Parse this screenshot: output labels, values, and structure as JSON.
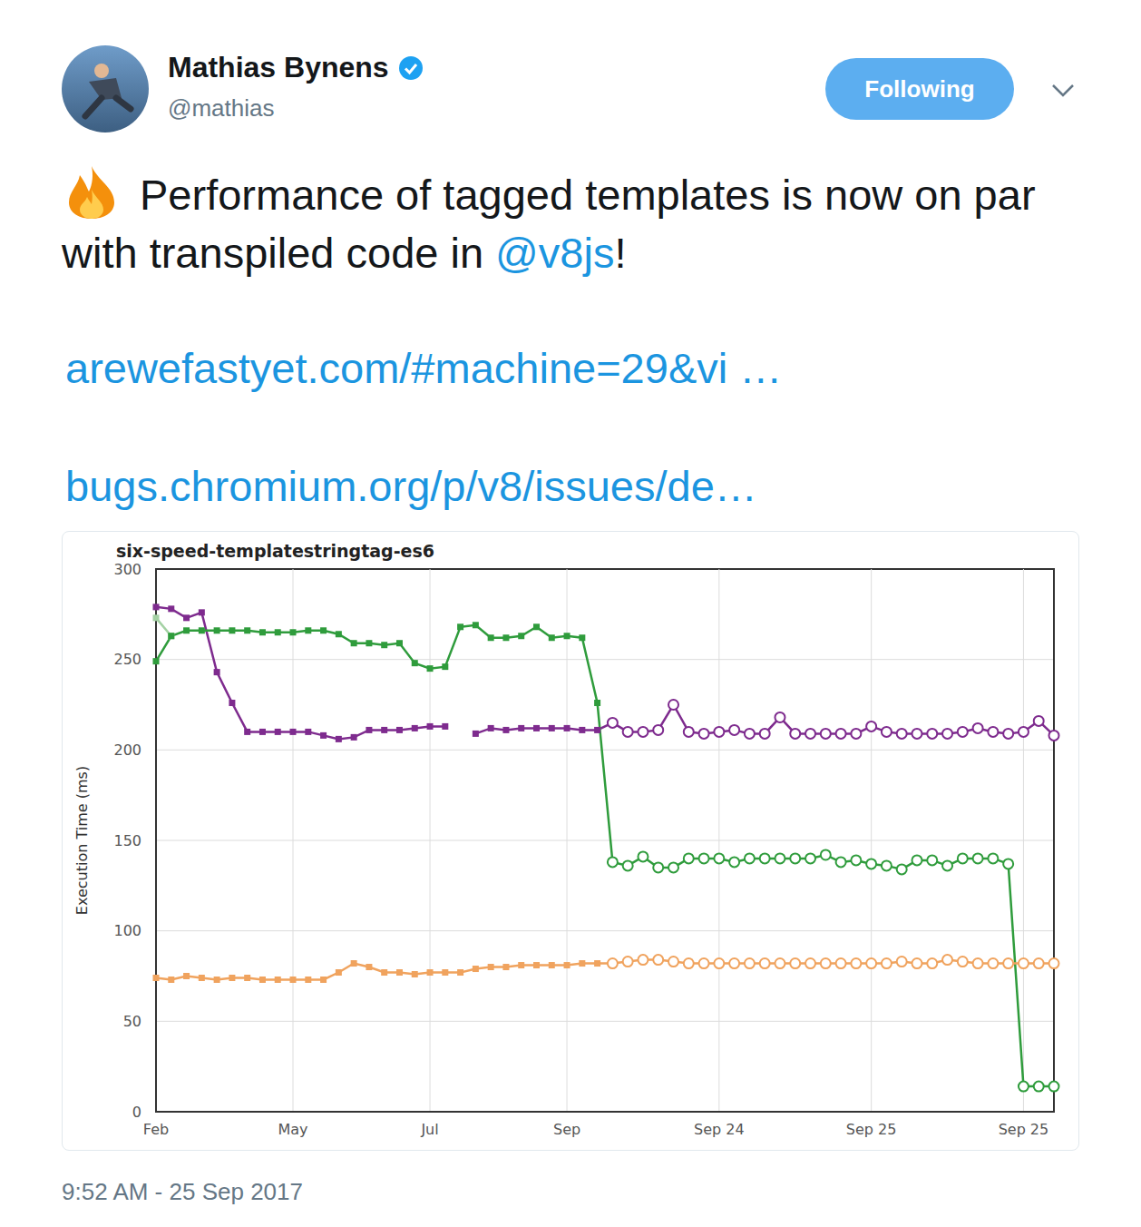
{
  "tweet": {
    "author": {
      "name": "Mathias Bynens",
      "handle": "@mathias",
      "verified": true
    },
    "button": "Following",
    "text": "Performance of tagged templates is now on par with transpiled code in ",
    "mention": "@v8js",
    "text_end": "!",
    "links": [
      "arewefastyet.com/#machine=29&vi …",
      "bugs.chromium.org/p/v8/issues/de…"
    ],
    "timestamp": "9:52 AM - 25 Sep 2017"
  },
  "chart_data": {
    "type": "line",
    "title": "six-speed-templatestringtag-es6",
    "y_label": "Execution Time (ms)",
    "categories": [
      "Feb",
      null,
      null,
      null,
      null,
      null,
      null,
      null,
      null,
      "May",
      null,
      null,
      null,
      null,
      null,
      null,
      null,
      null,
      "Jul",
      null,
      null,
      null,
      null,
      null,
      null,
      null,
      null,
      "Sep",
      null,
      null,
      null,
      null,
      null,
      null,
      null,
      null,
      null,
      "Sep 24",
      null,
      null,
      null,
      null,
      null,
      null,
      null,
      null,
      null,
      "Sep 25",
      null,
      null,
      null,
      null,
      null,
      null,
      null,
      null,
      null,
      "Sep 25",
      null,
      null
    ],
    "ylim": [
      0,
      300
    ],
    "yticks": [
      0,
      50,
      100,
      150,
      200,
      250,
      300
    ],
    "grid": true,
    "series": [
      {
        "color": "#a3d1a3",
        "marker": "square",
        "values": [
          273,
          263,
          null,
          null,
          null,
          null,
          null,
          null,
          null,
          null,
          null,
          null,
          null,
          null,
          null,
          null,
          null,
          null,
          null,
          null,
          null,
          null,
          null,
          null,
          null,
          null,
          null,
          null,
          null,
          null,
          null,
          null,
          null,
          null,
          null,
          null,
          null,
          null,
          null,
          null,
          null,
          null,
          null,
          null,
          null,
          null,
          null,
          null,
          null,
          null,
          null,
          null,
          null,
          null,
          null,
          null,
          null,
          null,
          null,
          null
        ]
      },
      {
        "color": "#7e2b8e",
        "marker": "square",
        "values": [
          279,
          278,
          273,
          276,
          243,
          226,
          210,
          210,
          210,
          210,
          210,
          208,
          206,
          207,
          211,
          211,
          211,
          212,
          213,
          213,
          null,
          209,
          212,
          211,
          212,
          212,
          212,
          212,
          211,
          211,
          215,
          null,
          null,
          null,
          null,
          null,
          null,
          null,
          null,
          null,
          null,
          null,
          null,
          null,
          null,
          null,
          null,
          null,
          null,
          null,
          null,
          null,
          null,
          null,
          null,
          null,
          null,
          null,
          null,
          null
        ]
      },
      {
        "color": "#7e2b8e",
        "marker": "circle",
        "values": [
          null,
          null,
          null,
          null,
          null,
          null,
          null,
          null,
          null,
          null,
          null,
          null,
          null,
          null,
          null,
          null,
          null,
          null,
          null,
          null,
          null,
          null,
          null,
          null,
          null,
          null,
          null,
          null,
          null,
          null,
          215,
          210,
          210,
          211,
          225,
          210,
          209,
          210,
          211,
          209,
          209,
          218,
          209,
          209,
          209,
          209,
          209,
          213,
          210,
          209,
          209,
          209,
          209,
          210,
          212,
          210,
          209,
          210,
          216,
          208
        ]
      },
      {
        "color": "#2f9c3c",
        "marker": "square",
        "values": [
          249,
          263,
          266,
          266,
          266,
          266,
          266,
          265,
          265,
          265,
          266,
          266,
          264,
          259,
          259,
          258,
          259,
          248,
          245,
          246,
          268,
          269,
          262,
          262,
          263,
          268,
          262,
          263,
          262,
          226,
          138,
          null,
          null,
          null,
          null,
          null,
          null,
          null,
          null,
          null,
          null,
          null,
          null,
          null,
          null,
          null,
          null,
          null,
          null,
          null,
          null,
          null,
          null,
          null,
          null,
          null,
          null,
          null,
          null,
          null
        ]
      },
      {
        "color": "#2f9c3c",
        "marker": "circle",
        "values": [
          null,
          null,
          null,
          null,
          null,
          null,
          null,
          null,
          null,
          null,
          null,
          null,
          null,
          null,
          null,
          null,
          null,
          null,
          null,
          null,
          null,
          null,
          null,
          null,
          null,
          null,
          null,
          null,
          null,
          null,
          138,
          136,
          141,
          135,
          135,
          140,
          140,
          140,
          138,
          140,
          140,
          140,
          140,
          140,
          142,
          138,
          139,
          137,
          136,
          134,
          139,
          139,
          136,
          140,
          140,
          140,
          137,
          14,
          14,
          14
        ]
      },
      {
        "color": "#f0a35e",
        "marker": "square",
        "values": [
          74,
          73,
          75,
          74,
          73,
          74,
          74,
          73,
          73,
          73,
          73,
          73,
          77,
          82,
          80,
          77,
          77,
          76,
          77,
          77,
          77,
          79,
          80,
          80,
          81,
          81,
          81,
          81,
          82,
          82,
          82,
          null,
          null,
          null,
          null,
          null,
          null,
          null,
          null,
          null,
          null,
          null,
          null,
          null,
          null,
          null,
          null,
          null,
          null,
          null,
          null,
          null,
          null,
          null,
          null,
          null,
          null,
          null,
          null,
          null
        ]
      },
      {
        "color": "#f0a35e",
        "marker": "circle",
        "values": [
          null,
          null,
          null,
          null,
          null,
          null,
          null,
          null,
          null,
          null,
          null,
          null,
          null,
          null,
          null,
          null,
          null,
          null,
          null,
          null,
          null,
          null,
          null,
          null,
          null,
          null,
          null,
          null,
          null,
          null,
          82,
          83,
          84,
          84,
          83,
          82,
          82,
          82,
          82,
          82,
          82,
          82,
          82,
          82,
          82,
          82,
          82,
          82,
          82,
          83,
          82,
          82,
          84,
          83,
          82,
          82,
          82,
          82,
          82,
          82
        ]
      }
    ]
  }
}
